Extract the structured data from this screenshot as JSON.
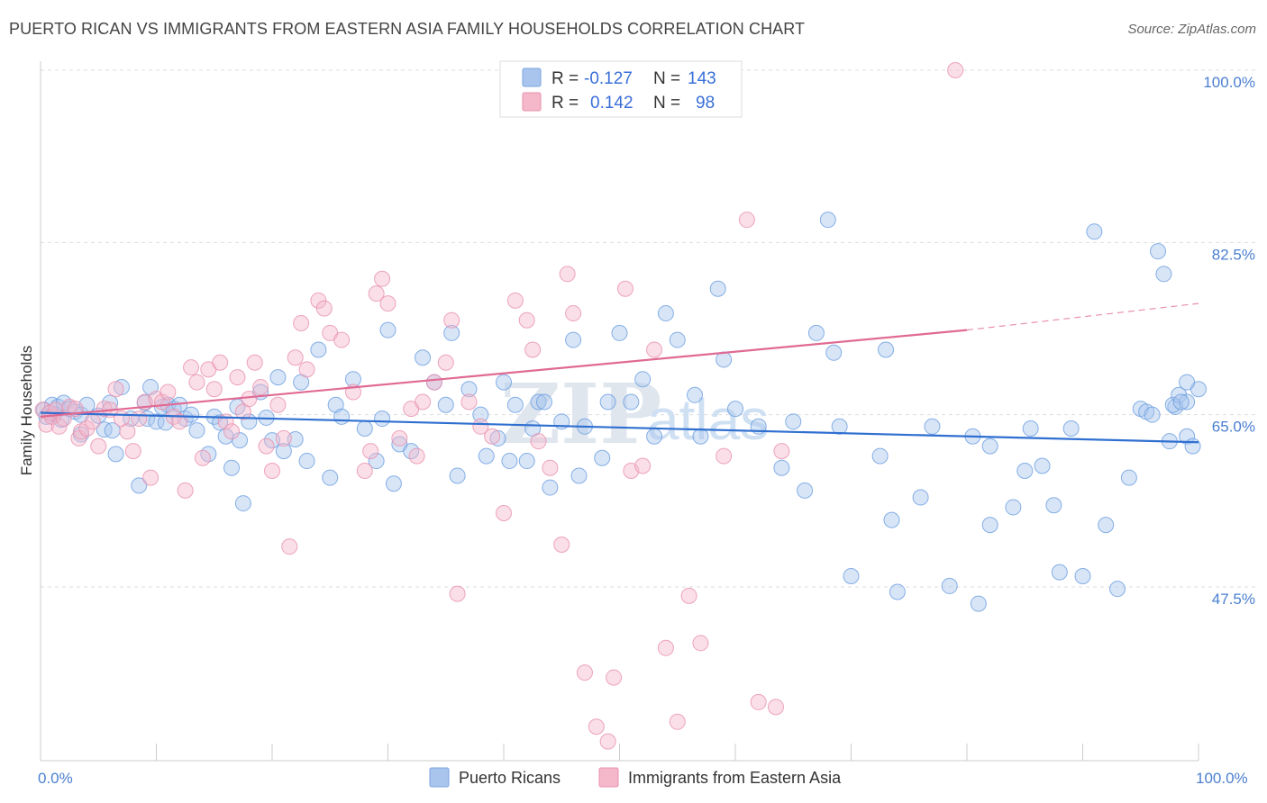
{
  "header": {
    "title": "PUERTO RICAN VS IMMIGRANTS FROM EASTERN ASIA FAMILY HOUSEHOLDS CORRELATION CHART",
    "source": "Source: ZipAtlas.com"
  },
  "watermark": {
    "zip": "ZIP",
    "atlas": "atlas"
  },
  "legend_top": {
    "rows": [
      {
        "r_label": "R =",
        "r_value": "-0.127",
        "n_label": "N =",
        "n_value": "143",
        "color": "#a9c5ee"
      },
      {
        "r_label": "R =",
        "r_value": "0.142",
        "n_label": "N =",
        "n_value": "98",
        "color": "#f5b8cb"
      }
    ]
  },
  "chart_data": {
    "type": "scatter",
    "title": "PUERTO RICAN VS IMMIGRANTS FROM EASTERN ASIA FAMILY HOUSEHOLDS CORRELATION CHART",
    "xlabel": "",
    "ylabel": "Family Households",
    "xlim": [
      0,
      100
    ],
    "ylim": [
      32,
      102
    ],
    "x_tick_labels": [
      "0.0%",
      "100.0%"
    ],
    "y_ticks": [
      47.5,
      65.0,
      82.5,
      100.0
    ],
    "y_tick_labels": [
      "47.5%",
      "65.0%",
      "82.5%",
      "100.0%"
    ],
    "grid": true,
    "legend_placement": "bottom",
    "series": [
      {
        "name": "Puerto Ricans",
        "color": "#6a9ee0",
        "fill": "#a9c5ee",
        "trend": {
          "x0": 0,
          "y0": 65.2,
          "x1": 100,
          "y1": 62.2
        },
        "points": [
          [
            0.3,
            65.5
          ],
          [
            0.5,
            64.8
          ],
          [
            0.8,
            65.2
          ],
          [
            1.0,
            66.0
          ],
          [
            1.2,
            65.0
          ],
          [
            1.5,
            65.8
          ],
          [
            1.8,
            64.5
          ],
          [
            2.0,
            66.2
          ],
          [
            2.5,
            65.6
          ],
          [
            3.0,
            65.3
          ],
          [
            3.5,
            65.0
          ],
          [
            3.5,
            63.0
          ],
          [
            4.0,
            66.0
          ],
          [
            5.0,
            64.9
          ],
          [
            5.5,
            63.5
          ],
          [
            6.0,
            66.2
          ],
          [
            6.2,
            63.4
          ],
          [
            6.5,
            61.0
          ],
          [
            7.0,
            67.8
          ],
          [
            7.8,
            64.6
          ],
          [
            8.5,
            57.8
          ],
          [
            9.0,
            66.2
          ],
          [
            9.2,
            64.6
          ],
          [
            9.5,
            67.8
          ],
          [
            10.0,
            64.3
          ],
          [
            10.5,
            65.8
          ],
          [
            10.8,
            64.2
          ],
          [
            11.0,
            66.0
          ],
          [
            11.5,
            65.6
          ],
          [
            12.0,
            66.0
          ],
          [
            12.5,
            64.6
          ],
          [
            13.0,
            65.0
          ],
          [
            13.5,
            63.4
          ],
          [
            14.5,
            61.0
          ],
          [
            15.0,
            64.8
          ],
          [
            15.5,
            64.2
          ],
          [
            16.0,
            62.8
          ],
          [
            16.5,
            59.6
          ],
          [
            17.0,
            65.8
          ],
          [
            17.2,
            62.4
          ],
          [
            17.5,
            56.0
          ],
          [
            18.0,
            64.3
          ],
          [
            19.0,
            67.3
          ],
          [
            19.5,
            64.7
          ],
          [
            20.0,
            62.4
          ],
          [
            20.5,
            68.8
          ],
          [
            21.0,
            61.3
          ],
          [
            22.0,
            62.5
          ],
          [
            22.5,
            68.3
          ],
          [
            23.0,
            60.3
          ],
          [
            24.0,
            71.6
          ],
          [
            25.0,
            58.6
          ],
          [
            25.5,
            66.0
          ],
          [
            26.0,
            64.8
          ],
          [
            27.0,
            68.6
          ],
          [
            28.0,
            63.6
          ],
          [
            29.0,
            60.3
          ],
          [
            29.5,
            64.6
          ],
          [
            30.0,
            73.6
          ],
          [
            30.5,
            58.0
          ],
          [
            31.0,
            62.0
          ],
          [
            32.0,
            61.3
          ],
          [
            33.0,
            70.8
          ],
          [
            34.0,
            68.3
          ],
          [
            35.0,
            66.0
          ],
          [
            35.5,
            73.3
          ],
          [
            36.0,
            58.8
          ],
          [
            37.0,
            67.6
          ],
          [
            38.0,
            65.0
          ],
          [
            38.5,
            60.8
          ],
          [
            39.5,
            62.6
          ],
          [
            40.0,
            68.3
          ],
          [
            40.5,
            60.3
          ],
          [
            41.0,
            66.0
          ],
          [
            42.0,
            60.3
          ],
          [
            42.5,
            63.6
          ],
          [
            43.0,
            66.3
          ],
          [
            43.5,
            66.3
          ],
          [
            44.0,
            57.6
          ],
          [
            45.0,
            64.3
          ],
          [
            46.0,
            72.6
          ],
          [
            46.5,
            58.8
          ],
          [
            47.0,
            63.8
          ],
          [
            48.5,
            60.6
          ],
          [
            49.0,
            66.3
          ],
          [
            50.0,
            73.3
          ],
          [
            51.0,
            66.3
          ],
          [
            52.0,
            68.6
          ],
          [
            53.0,
            62.8
          ],
          [
            54.0,
            75.3
          ],
          [
            55.0,
            72.6
          ],
          [
            56.5,
            67.0
          ],
          [
            57.0,
            62.8
          ],
          [
            58.5,
            77.8
          ],
          [
            59.0,
            70.6
          ],
          [
            60.0,
            65.6
          ],
          [
            62.0,
            63.8
          ],
          [
            64.0,
            59.6
          ],
          [
            65.0,
            64.3
          ],
          [
            66.0,
            57.3
          ],
          [
            67.0,
            73.3
          ],
          [
            68.0,
            84.8
          ],
          [
            68.5,
            71.3
          ],
          [
            69.0,
            63.8
          ],
          [
            70.0,
            48.6
          ],
          [
            72.5,
            60.8
          ],
          [
            73.0,
            71.6
          ],
          [
            73.5,
            54.3
          ],
          [
            74.0,
            47.0
          ],
          [
            76.0,
            56.6
          ],
          [
            77.0,
            63.8
          ],
          [
            78.5,
            47.6
          ],
          [
            80.5,
            62.8
          ],
          [
            81.0,
            45.8
          ],
          [
            82.0,
            61.8
          ],
          [
            82.0,
            53.8
          ],
          [
            84.0,
            55.6
          ],
          [
            85.0,
            59.3
          ],
          [
            85.5,
            63.6
          ],
          [
            86.5,
            59.8
          ],
          [
            87.5,
            55.8
          ],
          [
            88.0,
            49.0
          ],
          [
            89.0,
            63.6
          ],
          [
            90.0,
            48.6
          ],
          [
            91.0,
            83.6
          ],
          [
            92.0,
            53.8
          ],
          [
            93.0,
            47.3
          ],
          [
            94.0,
            58.6
          ],
          [
            95.0,
            65.6
          ],
          [
            95.5,
            65.3
          ],
          [
            96.5,
            81.6
          ],
          [
            97.0,
            79.3
          ],
          [
            97.5,
            62.3
          ],
          [
            98.0,
            65.8
          ],
          [
            99.0,
            62.8
          ],
          [
            99.5,
            61.8
          ],
          [
            96.0,
            65.0
          ],
          [
            97.8,
            66.0
          ],
          [
            98.3,
            67.0
          ],
          [
            99.0,
            66.3
          ],
          [
            100.0,
            67.6
          ],
          [
            99.0,
            68.3
          ],
          [
            98.5,
            66.3
          ]
        ]
      },
      {
        "name": "Immigrants from Eastern Asia",
        "color": "#e890ad",
        "fill": "#f5b8cb",
        "trend": {
          "x0": 0,
          "y0": 64.8,
          "x1": 80,
          "y1": 73.6
        },
        "trend_dashed": {
          "x0": 80,
          "y0": 73.6,
          "x1": 100,
          "y1": 76.3
        },
        "points": [
          [
            0.2,
            65.5
          ],
          [
            0.5,
            64.0
          ],
          [
            0.8,
            65.2
          ],
          [
            1.0,
            64.8
          ],
          [
            1.3,
            65.5
          ],
          [
            1.6,
            63.8
          ],
          [
            2.0,
            64.6
          ],
          [
            2.5,
            65.8
          ],
          [
            3.0,
            65.6
          ],
          [
            3.3,
            62.6
          ],
          [
            3.5,
            63.3
          ],
          [
            4.0,
            63.6
          ],
          [
            4.5,
            64.3
          ],
          [
            5.0,
            61.8
          ],
          [
            5.5,
            65.6
          ],
          [
            6.0,
            65.5
          ],
          [
            6.5,
            67.6
          ],
          [
            7.0,
            64.6
          ],
          [
            7.5,
            63.3
          ],
          [
            8.0,
            61.3
          ],
          [
            8.5,
            64.6
          ],
          [
            9.0,
            66.3
          ],
          [
            9.5,
            58.6
          ],
          [
            10.0,
            66.6
          ],
          [
            10.5,
            66.3
          ],
          [
            11.0,
            67.3
          ],
          [
            11.5,
            64.8
          ],
          [
            12.0,
            64.3
          ],
          [
            12.5,
            57.3
          ],
          [
            13.0,
            69.8
          ],
          [
            13.5,
            68.3
          ],
          [
            14.0,
            60.6
          ],
          [
            14.5,
            69.6
          ],
          [
            15.0,
            67.6
          ],
          [
            15.5,
            70.3
          ],
          [
            16.0,
            64.3
          ],
          [
            16.5,
            63.3
          ],
          [
            17.0,
            68.8
          ],
          [
            17.5,
            65.3
          ],
          [
            18.0,
            66.6
          ],
          [
            18.5,
            70.3
          ],
          [
            19.0,
            67.8
          ],
          [
            19.5,
            61.8
          ],
          [
            20.0,
            59.3
          ],
          [
            20.5,
            66.0
          ],
          [
            21.0,
            62.6
          ],
          [
            21.5,
            51.6
          ],
          [
            22.0,
            70.8
          ],
          [
            22.5,
            74.3
          ],
          [
            23.0,
            69.6
          ],
          [
            24.0,
            76.6
          ],
          [
            24.5,
            75.8
          ],
          [
            25.0,
            73.3
          ],
          [
            26.0,
            72.6
          ],
          [
            27.0,
            67.3
          ],
          [
            28.0,
            59.3
          ],
          [
            28.5,
            61.3
          ],
          [
            29.0,
            77.3
          ],
          [
            29.5,
            78.8
          ],
          [
            30.0,
            76.3
          ],
          [
            31.0,
            62.6
          ],
          [
            32.0,
            65.6
          ],
          [
            32.5,
            60.8
          ],
          [
            33.0,
            66.3
          ],
          [
            34.0,
            68.3
          ],
          [
            35.0,
            70.3
          ],
          [
            35.5,
            74.6
          ],
          [
            36.0,
            46.8
          ],
          [
            37.0,
            66.3
          ],
          [
            38.0,
            63.8
          ],
          [
            39.0,
            62.8
          ],
          [
            40.0,
            55.0
          ],
          [
            41.0,
            76.6
          ],
          [
            42.0,
            74.6
          ],
          [
            42.5,
            71.6
          ],
          [
            43.0,
            62.3
          ],
          [
            44.0,
            59.6
          ],
          [
            45.0,
            51.8
          ],
          [
            45.5,
            79.3
          ],
          [
            46.0,
            75.3
          ],
          [
            47.0,
            38.8
          ],
          [
            48.0,
            33.3
          ],
          [
            49.0,
            31.8
          ],
          [
            49.5,
            38.3
          ],
          [
            50.5,
            77.8
          ],
          [
            51.0,
            59.3
          ],
          [
            52.0,
            59.8
          ],
          [
            53.0,
            71.6
          ],
          [
            54.0,
            41.3
          ],
          [
            55.0,
            33.8
          ],
          [
            56.0,
            46.6
          ],
          [
            57.0,
            41.8
          ],
          [
            59.0,
            60.8
          ],
          [
            61.0,
            84.8
          ],
          [
            62.0,
            35.8
          ],
          [
            63.5,
            35.3
          ],
          [
            64.0,
            61.3
          ],
          [
            79.0,
            100.0
          ]
        ]
      }
    ]
  },
  "legend_bottom": {
    "items": [
      {
        "label": "Puerto Ricans",
        "color": "#a9c5ee"
      },
      {
        "label": "Immigrants from Eastern Asia",
        "color": "#f5b8cb"
      }
    ]
  }
}
